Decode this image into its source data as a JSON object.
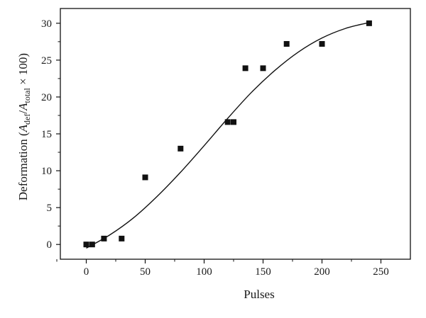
{
  "chart_data": {
    "type": "scatter",
    "xlabel": "Pulses",
    "ylabel": {
      "prefix": "Deformation (",
      "a1": "A",
      "sub1": "def",
      "slash": "/",
      "a2": "A",
      "sub2": "total",
      "suffix": " × 100)"
    },
    "xlim": [
      -22,
      275
    ],
    "ylim": [
      -2,
      32
    ],
    "xticks": [
      0,
      50,
      100,
      150,
      200,
      250
    ],
    "yticks": [
      0,
      5,
      10,
      15,
      20,
      25,
      30
    ],
    "grid": false,
    "legend": "none",
    "colors": {
      "points": "#111111",
      "fit_line": "#111111",
      "axes": "#111111"
    },
    "series": [
      {
        "marker": "square",
        "points": [
          {
            "x": 0,
            "y": 0.0
          },
          {
            "x": 5,
            "y": 0.0
          },
          {
            "x": 15,
            "y": 0.8
          },
          {
            "x": 30,
            "y": 0.8
          },
          {
            "x": 50,
            "y": 9.1
          },
          {
            "x": 80,
            "y": 13.0
          },
          {
            "x": 120,
            "y": 16.6
          },
          {
            "x": 125,
            "y": 16.6
          },
          {
            "x": 135,
            "y": 23.9
          },
          {
            "x": 150,
            "y": 23.9
          },
          {
            "x": 170,
            "y": 27.2
          },
          {
            "x": 200,
            "y": 27.2
          },
          {
            "x": 240,
            "y": 30.0
          }
        ]
      }
    ],
    "fit_curve": {
      "type": "line",
      "points": [
        {
          "x": 0,
          "y": -0.5
        },
        {
          "x": 20,
          "y": 1.3
        },
        {
          "x": 40,
          "y": 3.6
        },
        {
          "x": 60,
          "y": 6.5
        },
        {
          "x": 80,
          "y": 9.8
        },
        {
          "x": 100,
          "y": 13.4
        },
        {
          "x": 120,
          "y": 17.1
        },
        {
          "x": 140,
          "y": 20.6
        },
        {
          "x": 160,
          "y": 23.6
        },
        {
          "x": 180,
          "y": 26.1
        },
        {
          "x": 200,
          "y": 28.0
        },
        {
          "x": 220,
          "y": 29.3
        },
        {
          "x": 240,
          "y": 30.1
        }
      ]
    }
  }
}
